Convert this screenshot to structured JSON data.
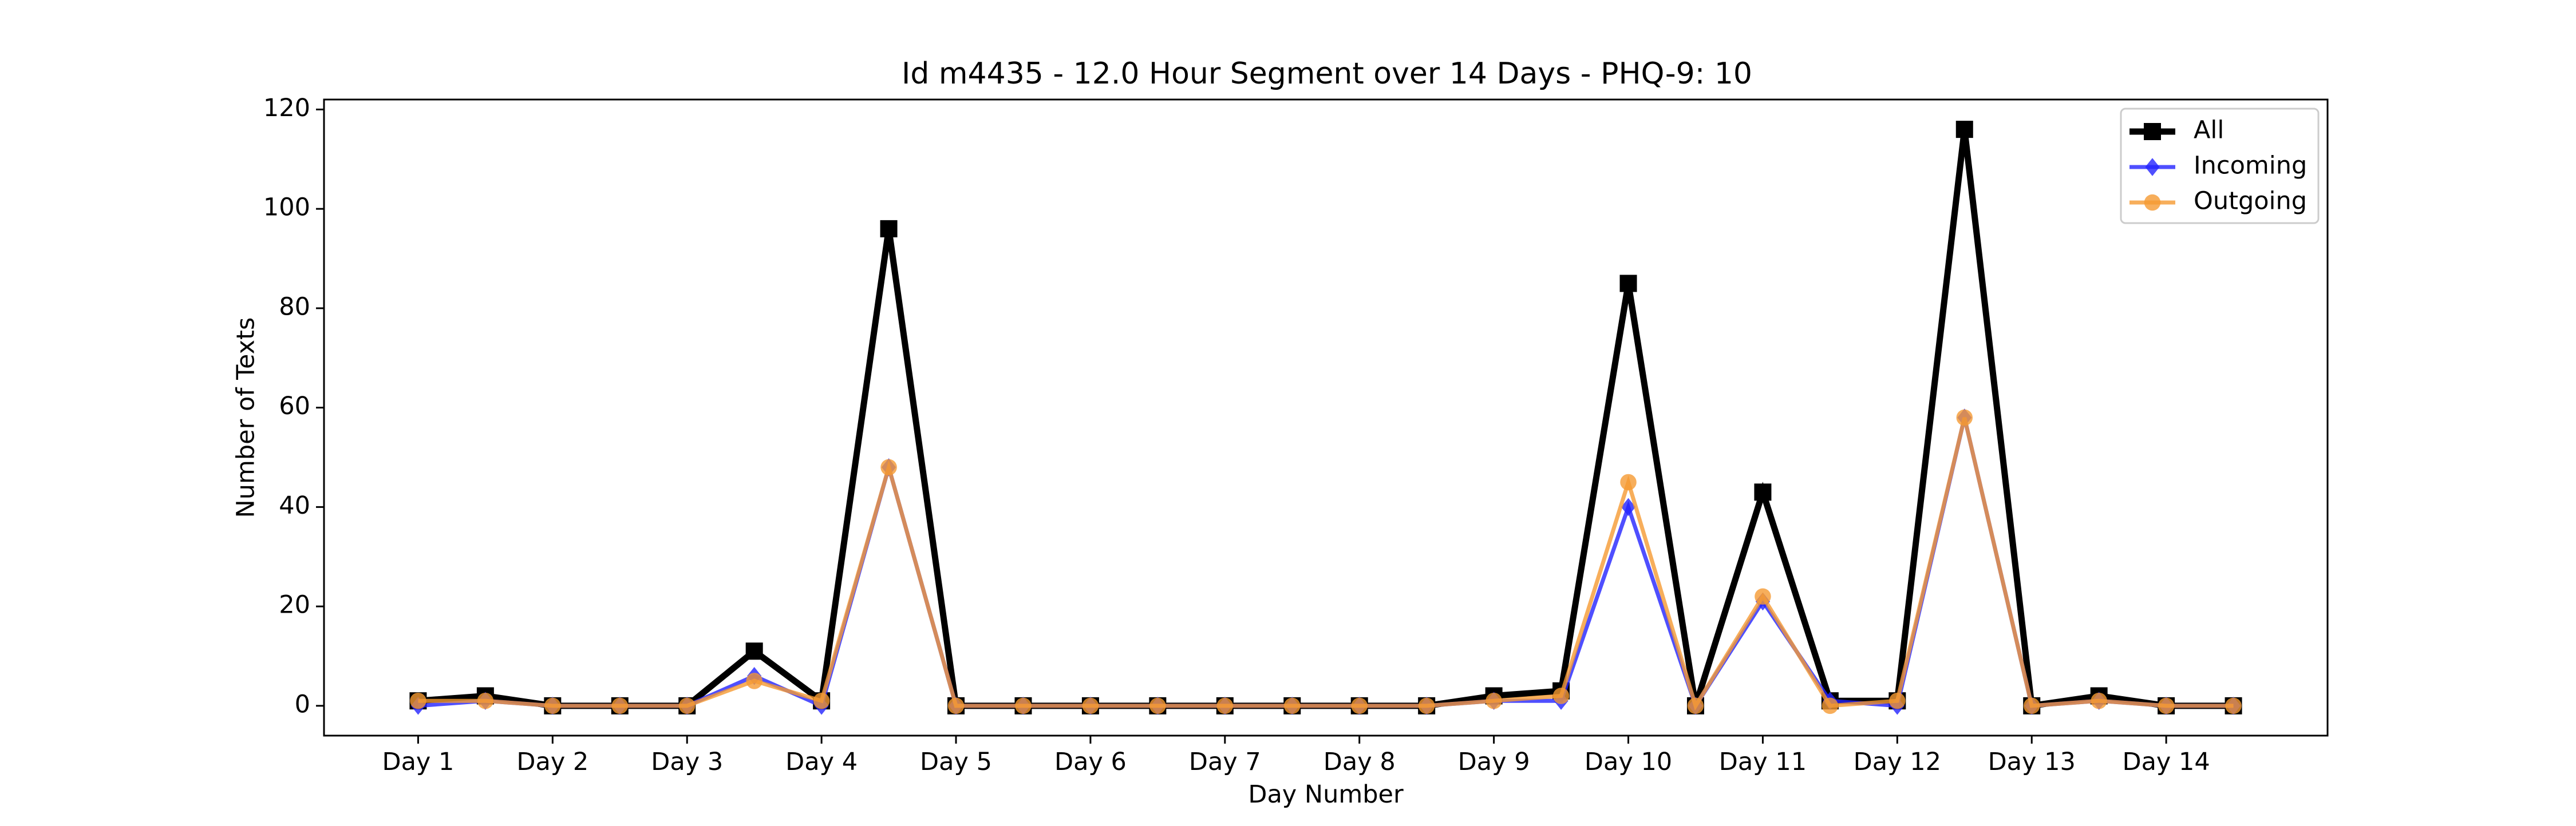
{
  "chart_data": {
    "type": "line",
    "title": "Id m4435 - 12.0 Hour Segment over 14 Days - PHQ-9: 10",
    "xlabel": "Day Number",
    "ylabel": "Number of Texts",
    "ylim": [
      -6,
      122
    ],
    "xlim": [
      -1.4,
      28.4
    ],
    "yticks": [
      0,
      20,
      40,
      60,
      80,
      100,
      120
    ],
    "xtick_positions": [
      0,
      2,
      4,
      6,
      8,
      10,
      12,
      14,
      16,
      18,
      20,
      22,
      24,
      26
    ],
    "xtick_labels": [
      "Day 1",
      "Day 2",
      "Day 3",
      "Day 4",
      "Day 5",
      "Day 6",
      "Day 7",
      "Day 8",
      "Day 9",
      "Day 10",
      "Day 11",
      "Day 12",
      "Day 13",
      "Day 14"
    ],
    "grid": false,
    "legend_position": "upper right",
    "x": [
      0,
      1,
      2,
      3,
      4,
      5,
      6,
      7,
      8,
      9,
      10,
      11,
      12,
      13,
      14,
      15,
      16,
      17,
      18,
      19,
      20,
      21,
      22,
      23,
      24,
      25,
      26,
      27
    ],
    "series": [
      {
        "name": "All",
        "color": "#000000",
        "marker": "square",
        "values": [
          1,
          2,
          0,
          0,
          0,
          11,
          1,
          96,
          0,
          0,
          0,
          0,
          0,
          0,
          0,
          0,
          2,
          3,
          85,
          0,
          43,
          1,
          1,
          116,
          0,
          2,
          0,
          0
        ]
      },
      {
        "name": "Incoming",
        "color": "#2323ff",
        "marker": "diamond",
        "values": [
          0,
          1,
          0,
          0,
          0,
          6,
          0,
          48,
          0,
          0,
          0,
          0,
          0,
          0,
          0,
          0,
          1,
          1,
          40,
          0,
          21,
          1,
          0,
          58,
          0,
          1,
          0,
          0
        ]
      },
      {
        "name": "Outgoing",
        "color": "#f59a32",
        "marker": "circle",
        "values": [
          1,
          1,
          0,
          0,
          0,
          5,
          1,
          48,
          0,
          0,
          0,
          0,
          0,
          0,
          0,
          0,
          1,
          2,
          45,
          0,
          22,
          0,
          1,
          58,
          0,
          1,
          0,
          0
        ]
      }
    ]
  }
}
